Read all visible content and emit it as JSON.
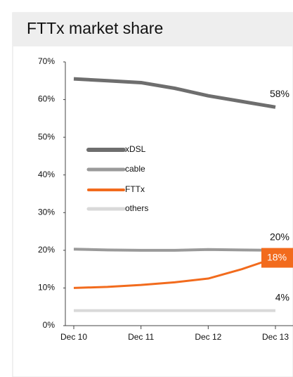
{
  "chart_data": {
    "type": "line",
    "title": "FTTx market share",
    "categories": [
      "Dec 10",
      null,
      "Dec 11",
      null,
      "Dec 12",
      null,
      "Dec 13"
    ],
    "ylim": [
      0,
      70
    ],
    "yticks": [
      {
        "value": 0,
        "label": "0%"
      },
      {
        "value": 10,
        "label": "10%"
      },
      {
        "value": 20,
        "label": "20%"
      },
      {
        "value": 30,
        "label": "30%"
      },
      {
        "value": 40,
        "label": "40%"
      },
      {
        "value": 50,
        "label": "50%"
      },
      {
        "value": 60,
        "label": "60%"
      },
      {
        "value": 70,
        "label": "70%"
      }
    ],
    "legend": "left",
    "series": [
      {
        "name": "xDSL",
        "color": "#6e6e6e",
        "values": [
          65.5,
          65,
          64.5,
          63,
          61,
          59.5,
          58
        ],
        "value_labels": [
          null,
          null,
          null,
          null,
          null,
          null,
          "58%"
        ]
      },
      {
        "name": "cable",
        "color": "#9a9a9a",
        "values": [
          20.3,
          20.1,
          20,
          20,
          20.2,
          20.1,
          20
        ],
        "value_labels": [
          null,
          null,
          null,
          null,
          null,
          null,
          "20%"
        ]
      },
      {
        "name": "FTTx",
        "color": "#f26b1d",
        "values": [
          10,
          10.3,
          10.8,
          11.5,
          12.5,
          15,
          18
        ],
        "value_labels": [
          null,
          null,
          null,
          null,
          null,
          null,
          "18%"
        ]
      },
      {
        "name": "others",
        "color": "#d9d9d9",
        "values": [
          4,
          4,
          4,
          4,
          4,
          4,
          4
        ],
        "value_labels": [
          null,
          null,
          null,
          null,
          null,
          null,
          "4%"
        ]
      }
    ]
  }
}
